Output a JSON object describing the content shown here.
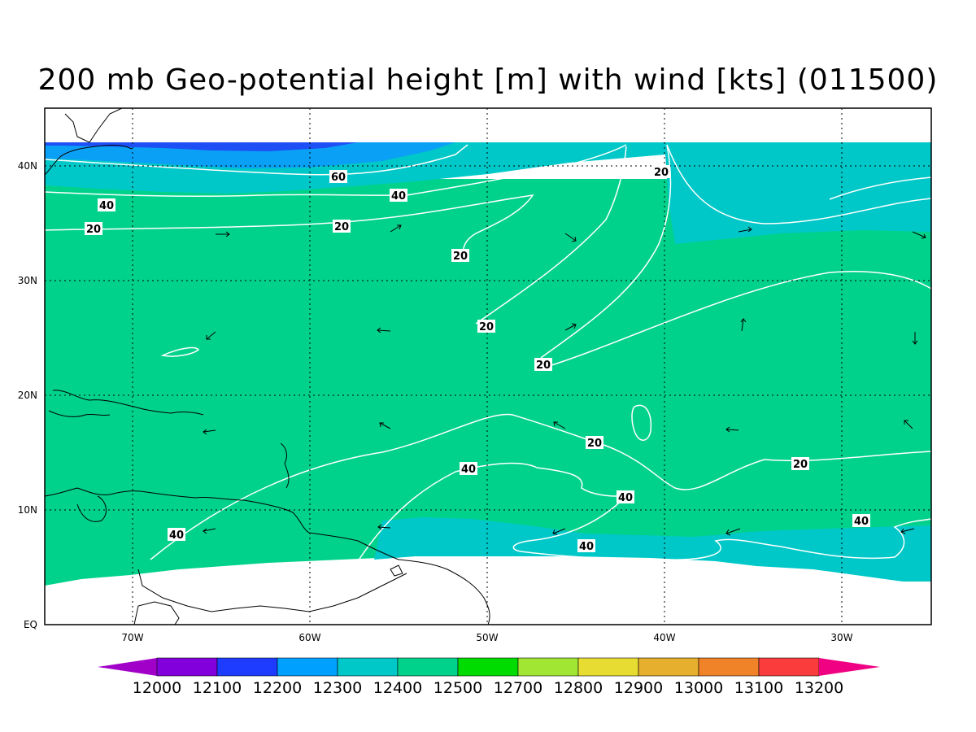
{
  "title": "200 mb Geo-potential height [m] with wind [kts] (011500)",
  "map": {
    "x_labels": [
      "70W",
      "60W",
      "50W",
      "40W",
      "30W"
    ],
    "y_labels": [
      "40N",
      "30N",
      "20N",
      "10N",
      "EQ"
    ],
    "fill_colors": {
      "c12200": "#1e4ff5",
      "c12300": "#0aa0f5",
      "c12400": "#00c8c8",
      "c12500": "#00d28c",
      "land_missing": "#ffffff"
    },
    "contour_color": "#ffffff",
    "contour_labels": [
      "60",
      "40",
      "20",
      "40",
      "20",
      "20",
      "20",
      "20",
      "20",
      "20",
      "20",
      "40",
      "40",
      "40",
      "40",
      "40"
    ]
  },
  "colorbar": {
    "colors": [
      "#a000c8",
      "#8200dc",
      "#1e3cff",
      "#00a0ff",
      "#00c8c8",
      "#00d28c",
      "#00dc00",
      "#a0e632",
      "#e6dc32",
      "#e6af2d",
      "#f08228",
      "#fa3c3c",
      "#f00082"
    ],
    "labels": [
      "12000",
      "12100",
      "12200",
      "12300",
      "12400",
      "12500",
      "12700",
      "12800",
      "12900",
      "13000",
      "13100",
      "13200"
    ]
  }
}
